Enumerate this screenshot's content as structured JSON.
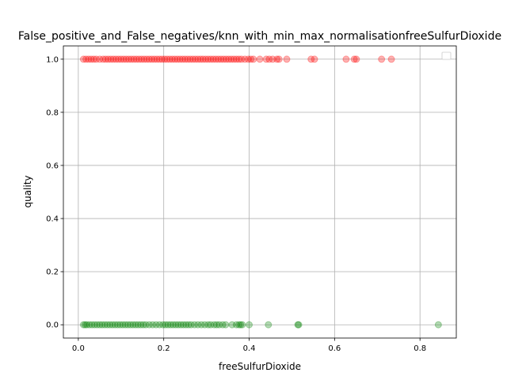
{
  "chart_data": {
    "type": "scatter",
    "title": "False_positive_and_False_negatives/knn_with_min_max_normalisationfreeSulfurDioxide",
    "xlabel": "freeSulfurDioxide",
    "ylabel": "quality",
    "xlim": [
      -0.035,
      0.885
    ],
    "ylim": [
      -0.05,
      1.05
    ],
    "xticks": [
      0.0,
      0.2,
      0.4,
      0.6,
      0.8
    ],
    "xtick_labels": [
      "0.0",
      "0.2",
      "0.4",
      "0.6",
      "0.8"
    ],
    "yticks": [
      0.0,
      0.2,
      0.4,
      0.6,
      0.8,
      1.0
    ],
    "ytick_labels": [
      "0.0",
      "0.2",
      "0.4",
      "0.6",
      "0.8",
      "1.0"
    ],
    "grid": true,
    "legend": {
      "position": "top-right",
      "entries": []
    },
    "series": [
      {
        "color": "#ff0000",
        "alpha": 0.3,
        "y": 1,
        "x": [
          0.012,
          0.018,
          0.024,
          0.03,
          0.036,
          0.042,
          0.05,
          0.058,
          0.064,
          0.07,
          0.076,
          0.082,
          0.088,
          0.094,
          0.1,
          0.106,
          0.112,
          0.118,
          0.124,
          0.13,
          0.136,
          0.142,
          0.148,
          0.154,
          0.16,
          0.166,
          0.172,
          0.178,
          0.184,
          0.19,
          0.196,
          0.202,
          0.208,
          0.214,
          0.22,
          0.226,
          0.232,
          0.238,
          0.244,
          0.25,
          0.256,
          0.262,
          0.268,
          0.274,
          0.28,
          0.286,
          0.292,
          0.298,
          0.304,
          0.31,
          0.316,
          0.322,
          0.328,
          0.334,
          0.34,
          0.346,
          0.352,
          0.358,
          0.364,
          0.37,
          0.376,
          0.382,
          0.39,
          0.398,
          0.404,
          0.41,
          0.425,
          0.44,
          0.447,
          0.455,
          0.465,
          0.47,
          0.488,
          0.545,
          0.553,
          0.627,
          0.646,
          0.651,
          0.71,
          0.733
        ]
      },
      {
        "color": "#008000",
        "alpha": 0.3,
        "y": 0,
        "x": [
          0.012,
          0.016,
          0.02,
          0.026,
          0.032,
          0.038,
          0.044,
          0.05,
          0.056,
          0.062,
          0.068,
          0.074,
          0.08,
          0.086,
          0.092,
          0.098,
          0.104,
          0.11,
          0.116,
          0.122,
          0.128,
          0.134,
          0.14,
          0.146,
          0.152,
          0.158,
          0.166,
          0.174,
          0.182,
          0.19,
          0.198,
          0.204,
          0.21,
          0.216,
          0.222,
          0.228,
          0.234,
          0.24,
          0.246,
          0.252,
          0.258,
          0.264,
          0.272,
          0.28,
          0.288,
          0.296,
          0.304,
          0.31,
          0.318,
          0.324,
          0.33,
          0.338,
          0.345,
          0.36,
          0.37,
          0.376,
          0.38,
          0.384,
          0.4,
          0.445,
          0.514,
          0.516,
          0.843
        ]
      }
    ]
  }
}
